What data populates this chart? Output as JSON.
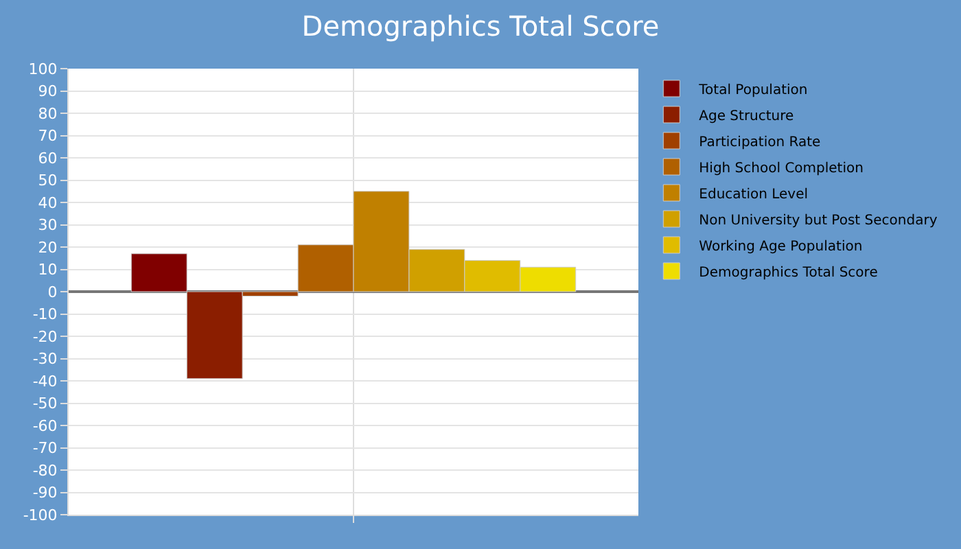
{
  "chart_data": {
    "type": "bar",
    "title": "Demographics Total Score",
    "categories": [
      null
    ],
    "series": [
      {
        "name": "Total Population",
        "color": "#800000",
        "values": [
          17
        ]
      },
      {
        "name": "Age Structure",
        "color": "#8b1e00",
        "values": [
          -39
        ]
      },
      {
        "name": "Participation Rate",
        "color": "#a04000",
        "values": [
          -2
        ]
      },
      {
        "name": "High School Completion",
        "color": "#b06000",
        "values": [
          21
        ]
      },
      {
        "name": "Education Level",
        "color": "#c08000",
        "values": [
          45
        ]
      },
      {
        "name": "Non University but Post Secondary",
        "color": "#d0a000",
        "values": [
          19
        ]
      },
      {
        "name": "Working Age Population",
        "color": "#e0bc00",
        "values": [
          14
        ]
      },
      {
        "name": "Demographics Total Score",
        "color": "#eedd00",
        "values": [
          11
        ]
      }
    ],
    "ylim": [
      -100,
      100
    ],
    "yticks": [
      -100,
      -90,
      -80,
      -70,
      -60,
      -50,
      -40,
      -30,
      -20,
      -10,
      0,
      10,
      20,
      30,
      40,
      50,
      60,
      70,
      80,
      90,
      100
    ],
    "grid": true,
    "legend": "top right"
  }
}
